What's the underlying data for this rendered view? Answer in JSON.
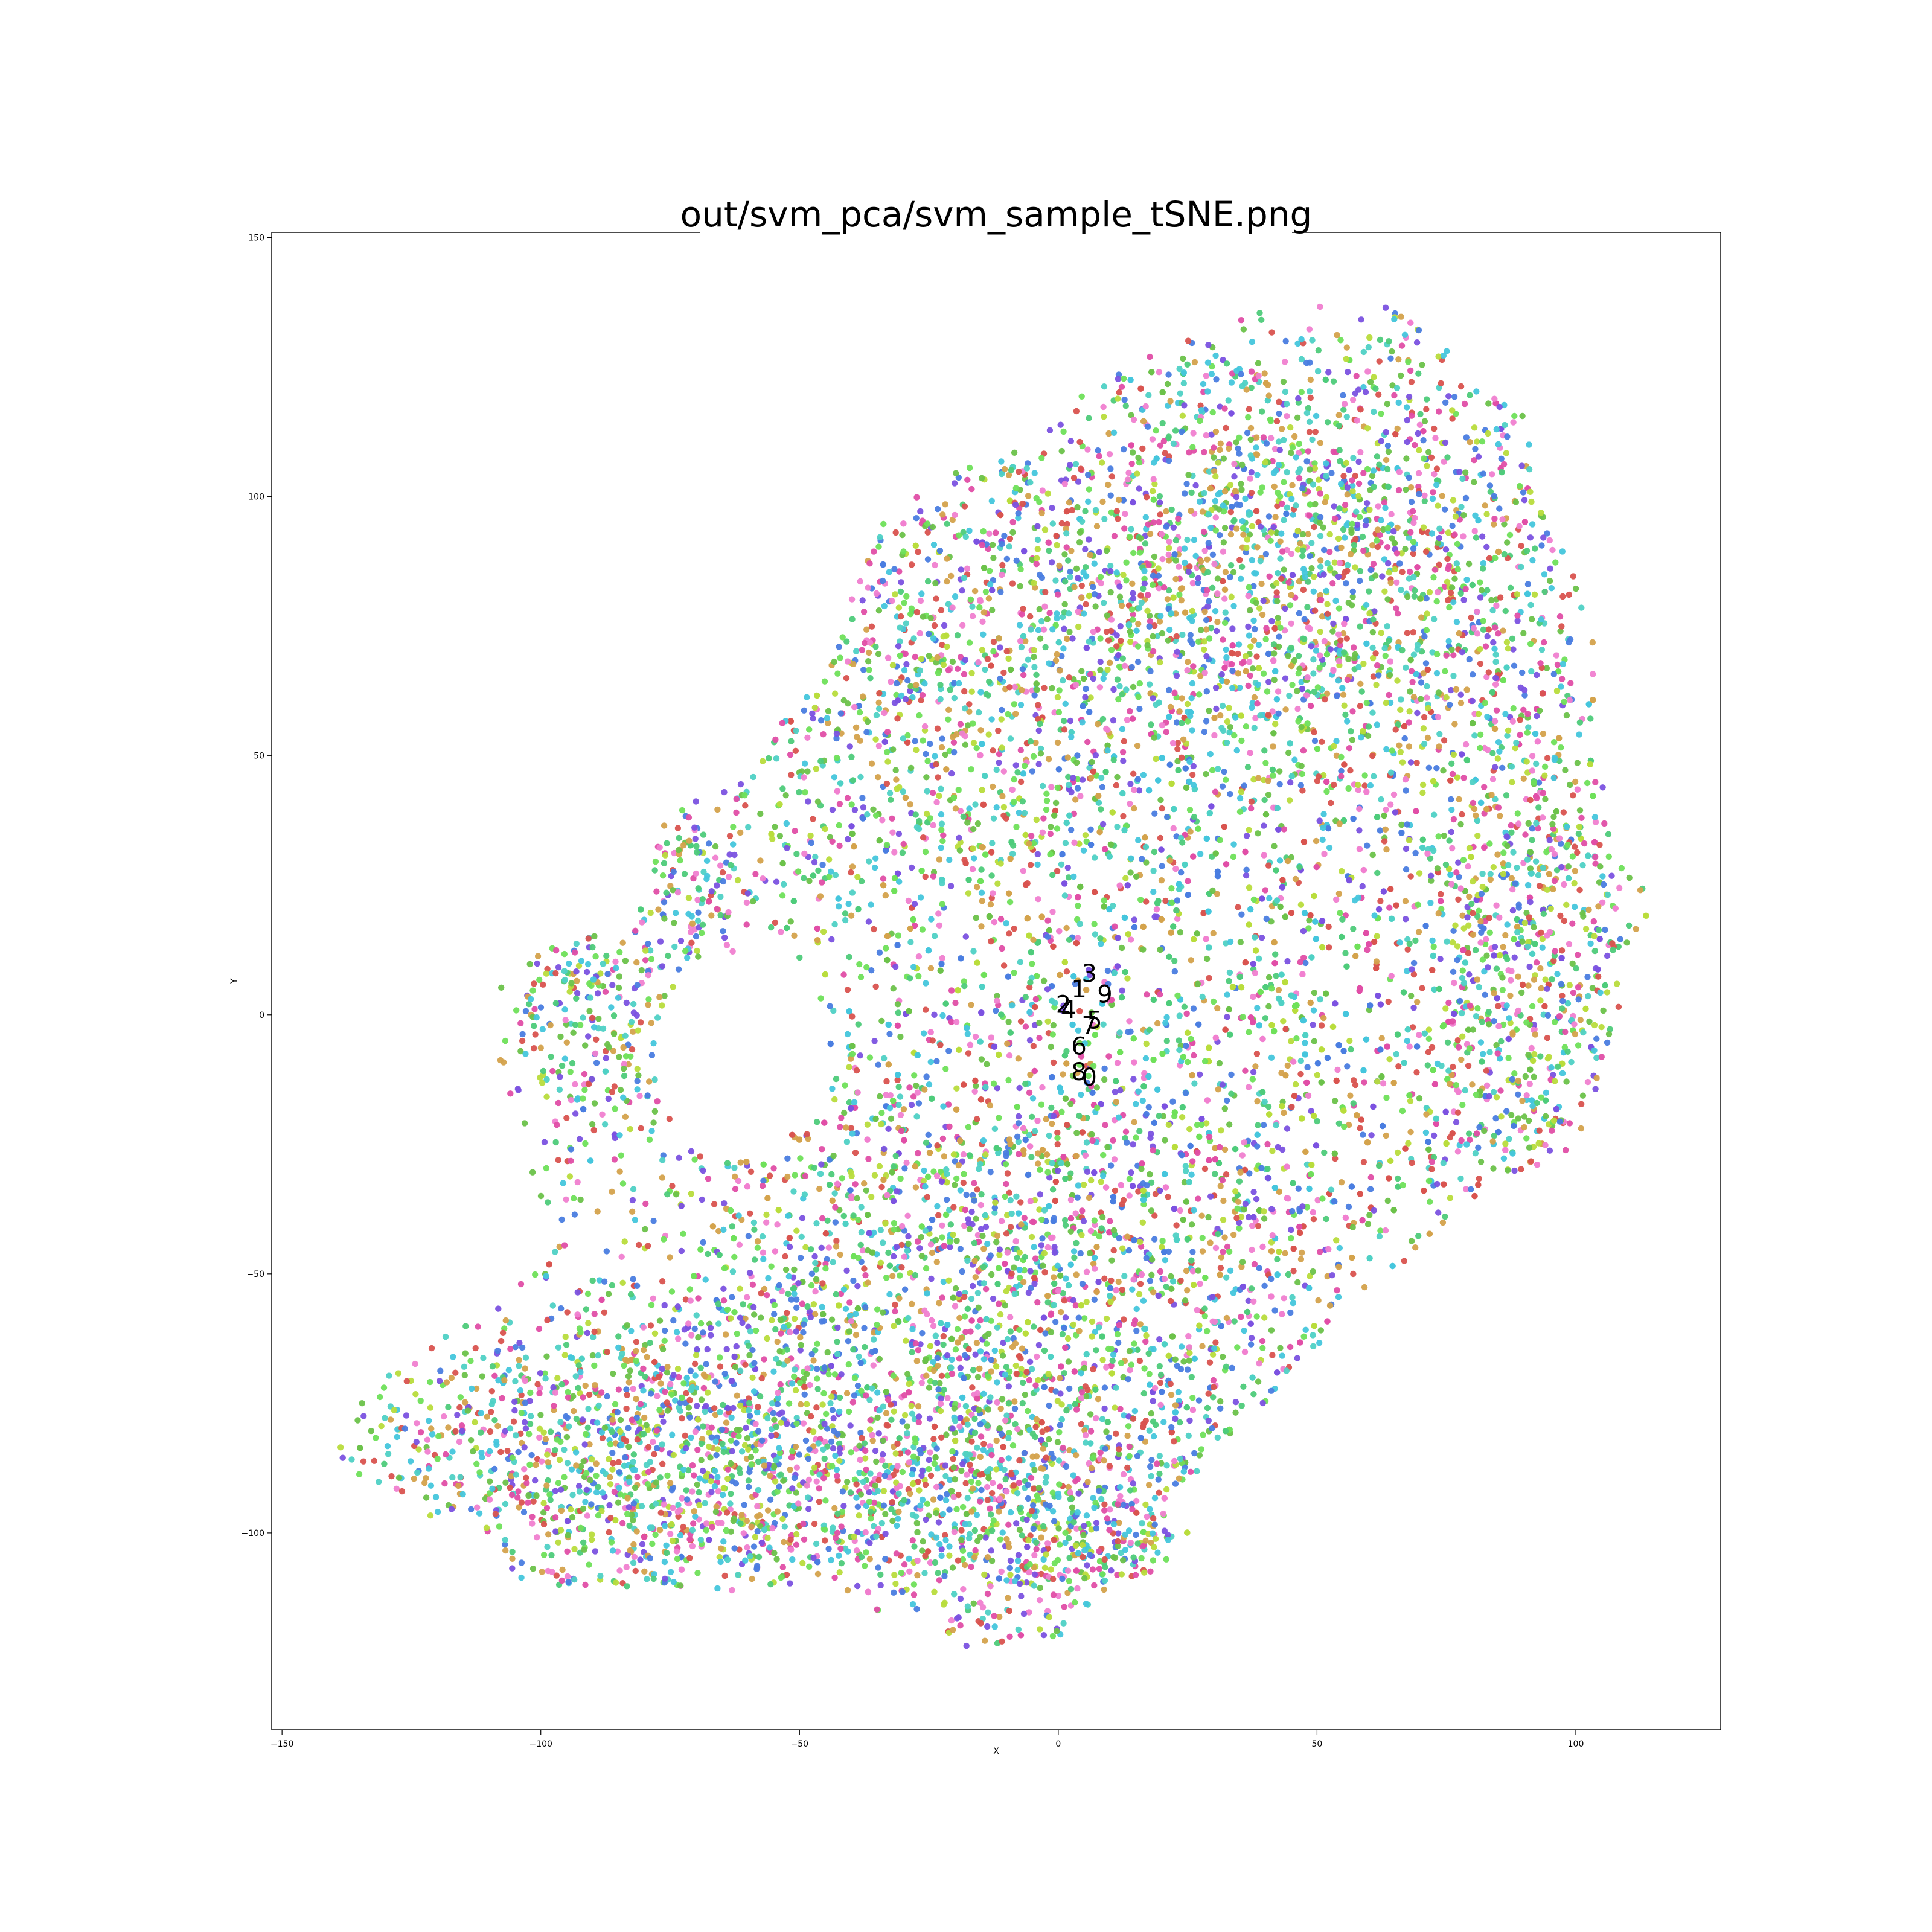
{
  "chart_data": {
    "type": "scatter",
    "title": "out/svm_pca/svm_sample_tSNE.png",
    "xlabel": "X",
    "ylabel": "Y",
    "xlim": [
      -152,
      128
    ],
    "ylim": [
      -138,
      151
    ],
    "x_ticks": [
      -150,
      -100,
      -50,
      0,
      50,
      100
    ],
    "x_tick_labels": [
      "−150",
      "−100",
      "−50",
      "0",
      "50",
      "100"
    ],
    "y_ticks": [
      150,
      100,
      50,
      0,
      -50,
      -100
    ],
    "y_tick_labels": [
      "150",
      "100",
      "50",
      "0",
      "−50",
      "−100"
    ],
    "grid": false,
    "legend": "none",
    "class_colors": [
      "#d9534f",
      "#6cc24a",
      "#f07fd0",
      "#4fd1c5",
      "#7b52e0",
      "#d4a24c",
      "#b8dc3c",
      "#4ecb7a",
      "#e04ea6",
      "#4a7de0",
      "#45c6dc",
      "#6fe05a"
    ],
    "class_labels": [
      {
        "text": "3",
        "x": 6,
        "y": 8
      },
      {
        "text": "1",
        "x": 4,
        "y": 5
      },
      {
        "text": "9",
        "x": 9,
        "y": 4
      },
      {
        "text": "2",
        "x": 1,
        "y": 2
      },
      {
        "text": "4",
        "x": 2,
        "y": 1
      },
      {
        "text": "7",
        "x": 6,
        "y": -2
      },
      {
        "text": "5",
        "x": 7,
        "y": -1
      },
      {
        "text": "6",
        "x": 4,
        "y": -6
      },
      {
        "text": "8",
        "x": 4,
        "y": -11
      },
      {
        "text": "0",
        "x": 6,
        "y": -12
      }
    ],
    "point_estimate_note_removed": true,
    "regions": [
      {
        "cx": 35,
        "cy": 10,
        "sx": 50,
        "sy": 55,
        "n": 3200
      },
      {
        "cx": 45,
        "cy": 90,
        "sx": 35,
        "sy": 25,
        "n": 1800
      },
      {
        "cx": -30,
        "cy": 60,
        "sx": 25,
        "sy": 25,
        "n": 700
      },
      {
        "cx": -20,
        "cy": -55,
        "sx": 40,
        "sy": 30,
        "n": 2200
      },
      {
        "cx": -75,
        "cy": -85,
        "sx": 35,
        "sy": 15,
        "n": 1500
      },
      {
        "cx": -90,
        "cy": 0,
        "sx": 10,
        "sy": 15,
        "n": 250
      },
      {
        "cx": -70,
        "cy": 25,
        "sx": 7,
        "sy": 10,
        "n": 120
      },
      {
        "cx": 90,
        "cy": 10,
        "sx": 12,
        "sy": 35,
        "n": 600
      },
      {
        "cx": 0,
        "cy": -100,
        "sx": 20,
        "sy": 12,
        "n": 500
      }
    ]
  }
}
